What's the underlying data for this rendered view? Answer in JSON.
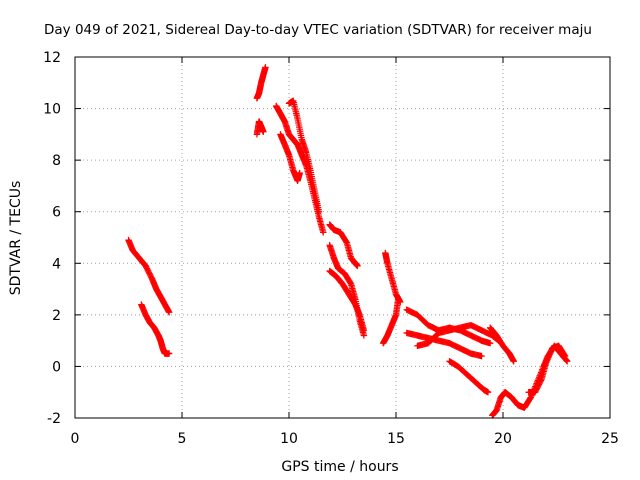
{
  "chart_data": {
    "type": "scatter",
    "title": "Day 049 of 2021, Sidereal Day-to-day VTEC variation (SDTVAR) for receiver maju",
    "xlabel": "GPS time / hours",
    "ylabel": "SDTVAR / TECUs",
    "xlim": [
      0,
      25
    ],
    "ylim": [
      -2,
      12
    ],
    "xticks": [
      "0",
      "5",
      "10",
      "15",
      "20",
      "25"
    ],
    "yticks": [
      "-2",
      "0",
      "2",
      "4",
      "6",
      "8",
      "10",
      "12"
    ],
    "grid": true,
    "marker": "plus",
    "color": "#ff0000",
    "series": [
      {
        "name": "arc-1",
        "x": [
          2.5,
          2.7,
          3.0,
          3.3,
          3.6,
          3.8,
          4.0,
          4.2,
          4.4
        ],
        "y": [
          4.9,
          4.5,
          4.2,
          3.9,
          3.4,
          3.0,
          2.7,
          2.4,
          2.1
        ]
      },
      {
        "name": "arc-2",
        "x": [
          3.1,
          3.3,
          3.5,
          3.7,
          3.9,
          4.0,
          4.1,
          4.2,
          4.4
        ],
        "y": [
          2.4,
          2.0,
          1.7,
          1.5,
          1.2,
          1.0,
          0.7,
          0.5,
          0.5
        ]
      },
      {
        "name": "arc-3",
        "x": [
          8.5,
          8.6,
          8.7,
          8.8,
          8.9
        ],
        "y": [
          10.4,
          10.6,
          11.0,
          11.3,
          11.6
        ]
      },
      {
        "name": "arc-4",
        "x": [
          8.5,
          8.6,
          8.7,
          8.8
        ],
        "y": [
          9.0,
          9.5,
          9.3,
          9.1
        ]
      },
      {
        "name": "arc-5",
        "x": [
          9.4,
          9.6,
          9.8,
          10.0,
          10.2,
          10.4,
          10.6,
          10.8,
          11.0,
          11.2,
          11.4,
          11.6
        ],
        "y": [
          10.1,
          9.8,
          9.5,
          9.0,
          8.8,
          8.6,
          8.2,
          7.8,
          7.2,
          6.5,
          5.8,
          5.2
        ]
      },
      {
        "name": "arc-6",
        "x": [
          9.6,
          9.8,
          10.0,
          10.2,
          10.4,
          10.5
        ],
        "y": [
          9.0,
          8.6,
          8.2,
          7.6,
          7.2,
          7.5
        ]
      },
      {
        "name": "arc-7",
        "x": [
          10.0,
          10.2,
          10.4,
          10.6,
          10.8,
          11.0,
          11.2,
          11.4
        ],
        "y": [
          10.2,
          10.3,
          9.6,
          8.8,
          8.3,
          7.6,
          6.8,
          6.0
        ]
      },
      {
        "name": "arc-8",
        "x": [
          11.9,
          12.1,
          12.4,
          12.7,
          12.9,
          13.1,
          13.2
        ],
        "y": [
          5.5,
          5.3,
          5.2,
          4.8,
          4.2,
          4.0,
          3.9
        ]
      },
      {
        "name": "arc-9",
        "x": [
          11.9,
          12.1,
          12.3,
          12.6,
          12.9,
          13.1,
          13.3,
          13.5
        ],
        "y": [
          4.7,
          4.2,
          3.8,
          3.6,
          3.2,
          2.6,
          1.8,
          1.2
        ]
      },
      {
        "name": "arc-10",
        "x": [
          11.9,
          12.2,
          12.5,
          12.8,
          13.1,
          13.3,
          13.5
        ],
        "y": [
          3.7,
          3.5,
          3.2,
          2.8,
          2.4,
          2.0,
          1.4
        ]
      },
      {
        "name": "arc-11",
        "x": [
          14.5,
          14.6,
          14.8,
          15.0,
          15.2
        ],
        "y": [
          4.4,
          4.0,
          3.4,
          2.8,
          2.5
        ]
      },
      {
        "name": "arc-12",
        "x": [
          14.4,
          14.6,
          14.8,
          15.0,
          15.1
        ],
        "y": [
          0.9,
          1.2,
          1.6,
          2.0,
          2.6
        ]
      },
      {
        "name": "arc-13",
        "x": [
          15.5,
          16.0,
          16.5,
          17.0,
          17.5,
          18.0,
          18.5,
          19.0,
          19.4
        ],
        "y": [
          2.2,
          2.0,
          1.6,
          1.4,
          1.5,
          1.4,
          1.2,
          1.0,
          0.9
        ]
      },
      {
        "name": "arc-14",
        "x": [
          15.5,
          16.0,
          16.5,
          17.0,
          17.5,
          18.0,
          18.5,
          19.0
        ],
        "y": [
          1.3,
          1.2,
          1.1,
          1.0,
          0.9,
          0.7,
          0.5,
          0.4
        ]
      },
      {
        "name": "arc-15",
        "x": [
          16.0,
          16.5,
          17.0,
          17.5,
          18.0,
          18.5,
          19.0,
          19.5,
          19.8
        ],
        "y": [
          0.8,
          0.9,
          1.3,
          1.4,
          1.5,
          1.6,
          1.4,
          1.2,
          1.0
        ]
      },
      {
        "name": "arc-16",
        "x": [
          17.5,
          17.9,
          18.3,
          18.7,
          19.1,
          19.3
        ],
        "y": [
          0.2,
          0.0,
          -0.3,
          -0.6,
          -0.9,
          -1.0
        ]
      },
      {
        "name": "arc-17",
        "x": [
          19.4,
          19.7,
          20.0,
          20.3,
          20.5
        ],
        "y": [
          1.5,
          1.2,
          0.8,
          0.5,
          0.2
        ]
      },
      {
        "name": "arc-18",
        "x": [
          19.5,
          19.7,
          19.9,
          20.1,
          20.4,
          20.7,
          21.0,
          21.3,
          21.6,
          21.9,
          22.1,
          22.4,
          22.7,
          23.0
        ],
        "y": [
          -1.9,
          -1.7,
          -1.2,
          -1.0,
          -1.2,
          -1.5,
          -1.6,
          -1.2,
          -0.6,
          0.0,
          0.4,
          0.8,
          0.5,
          0.2
        ]
      },
      {
        "name": "arc-19",
        "x": [
          21.2,
          21.5,
          21.8,
          22.0,
          22.3,
          22.6,
          22.9
        ],
        "y": [
          -1.0,
          -1.0,
          -0.5,
          0.1,
          0.7,
          0.8,
          0.4
        ]
      }
    ]
  }
}
